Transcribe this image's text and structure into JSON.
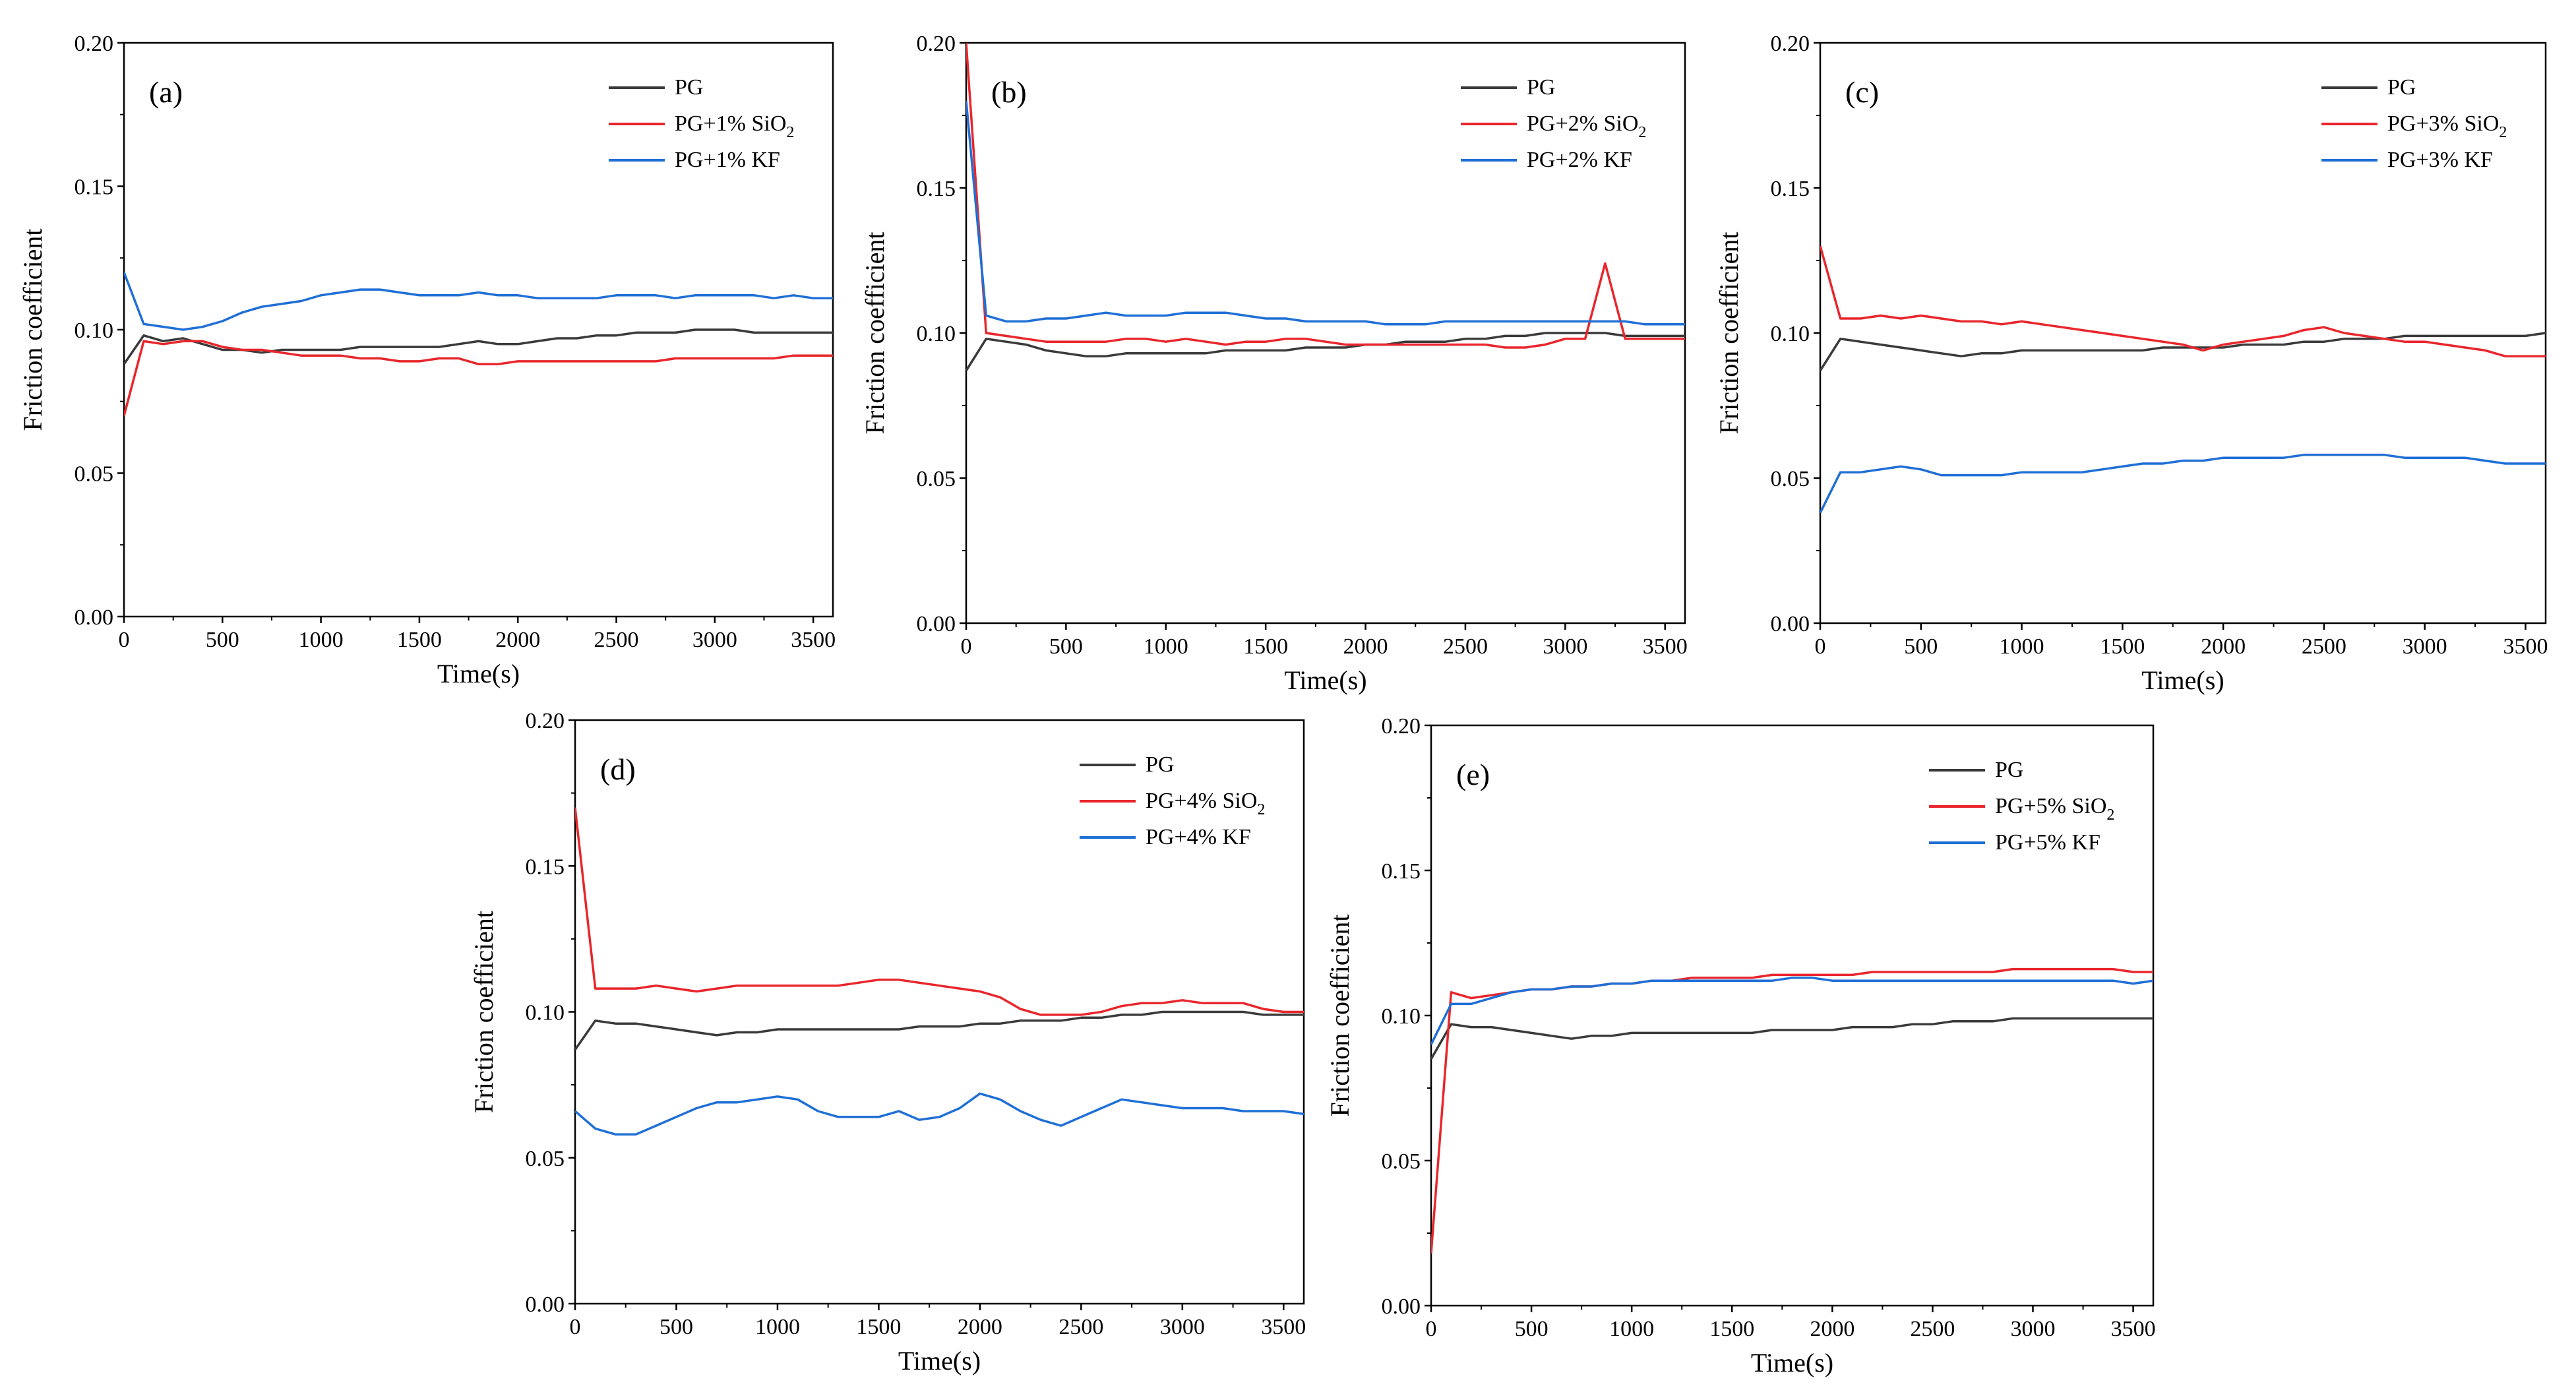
{
  "chart_data": [
    {
      "type": "line",
      "panel_label": "(a)",
      "xlabel": "Time(s)",
      "ylabel": "Friction coefficient",
      "xlim": [
        0,
        3600
      ],
      "ylim": [
        0,
        0.2
      ],
      "xticks": [
        "0",
        "500",
        "1000",
        "1500",
        "2000",
        "2500",
        "3000",
        "3500"
      ],
      "yticks": [
        "0.00",
        "0.05",
        "0.10",
        "0.15",
        "0.20"
      ],
      "legend_position": "top-right",
      "x": [
        0,
        100,
        200,
        300,
        400,
        500,
        600,
        700,
        800,
        900,
        1000,
        1100,
        1200,
        1300,
        1400,
        1500,
        1600,
        1700,
        1800,
        1900,
        2000,
        2100,
        2200,
        2300,
        2400,
        2500,
        2600,
        2700,
        2800,
        2900,
        3000,
        3100,
        3200,
        3300,
        3400,
        3500,
        3600
      ],
      "series": [
        {
          "name": "PG",
          "label_main": "PG",
          "label_sub": "",
          "color": "#3a3a3a",
          "values": [
            0.088,
            0.098,
            0.096,
            0.097,
            0.095,
            0.093,
            0.093,
            0.092,
            0.093,
            0.093,
            0.093,
            0.093,
            0.094,
            0.094,
            0.094,
            0.094,
            0.094,
            0.095,
            0.096,
            0.095,
            0.095,
            0.096,
            0.097,
            0.097,
            0.098,
            0.098,
            0.099,
            0.099,
            0.099,
            0.1,
            0.1,
            0.1,
            0.099,
            0.099,
            0.099,
            0.099,
            0.099
          ]
        },
        {
          "name": "PG+1% SiO2",
          "label_main": "PG+1% SiO",
          "label_sub": "2",
          "color": "#e8262c",
          "values": [
            0.07,
            0.096,
            0.095,
            0.096,
            0.096,
            0.094,
            0.093,
            0.093,
            0.092,
            0.091,
            0.091,
            0.091,
            0.09,
            0.09,
            0.089,
            0.089,
            0.09,
            0.09,
            0.088,
            0.088,
            0.089,
            0.089,
            0.089,
            0.089,
            0.089,
            0.089,
            0.089,
            0.089,
            0.09,
            0.09,
            0.09,
            0.09,
            0.09,
            0.09,
            0.091,
            0.091,
            0.091
          ]
        },
        {
          "name": "PG+1% KF",
          "label_main": "PG+1% KF",
          "label_sub": "",
          "color": "#1f6fd6",
          "values": [
            0.12,
            0.102,
            0.101,
            0.1,
            0.101,
            0.103,
            0.106,
            0.108,
            0.109,
            0.11,
            0.112,
            0.113,
            0.114,
            0.114,
            0.113,
            0.112,
            0.112,
            0.112,
            0.113,
            0.112,
            0.112,
            0.111,
            0.111,
            0.111,
            0.111,
            0.112,
            0.112,
            0.112,
            0.111,
            0.112,
            0.112,
            0.112,
            0.112,
            0.111,
            0.112,
            0.111,
            0.111
          ]
        }
      ]
    },
    {
      "type": "line",
      "panel_label": "(b)",
      "xlabel": "Time(s)",
      "ylabel": "Friction coefficient",
      "xlim": [
        0,
        3600
      ],
      "ylim": [
        0,
        0.2
      ],
      "xticks": [
        "0",
        "500",
        "1000",
        "1500",
        "2000",
        "2500",
        "3000",
        "3500"
      ],
      "yticks": [
        "0.00",
        "0.05",
        "0.10",
        "0.15",
        "0.20"
      ],
      "legend_position": "top-right",
      "x": [
        0,
        100,
        200,
        300,
        400,
        500,
        600,
        700,
        800,
        900,
        1000,
        1100,
        1200,
        1300,
        1400,
        1500,
        1600,
        1700,
        1800,
        1900,
        2000,
        2100,
        2200,
        2300,
        2400,
        2500,
        2600,
        2700,
        2800,
        2900,
        3000,
        3100,
        3200,
        3300,
        3400,
        3500,
        3600
      ],
      "series": [
        {
          "name": "PG",
          "label_main": "PG",
          "label_sub": "",
          "color": "#3a3a3a",
          "values": [
            0.087,
            0.098,
            0.097,
            0.096,
            0.094,
            0.093,
            0.092,
            0.092,
            0.093,
            0.093,
            0.093,
            0.093,
            0.093,
            0.094,
            0.094,
            0.094,
            0.094,
            0.095,
            0.095,
            0.095,
            0.096,
            0.096,
            0.097,
            0.097,
            0.097,
            0.098,
            0.098,
            0.099,
            0.099,
            0.1,
            0.1,
            0.1,
            0.1,
            0.099,
            0.099,
            0.099,
            0.099
          ]
        },
        {
          "name": "PG+2% SiO2",
          "label_main": "PG+2% SiO",
          "label_sub": "2",
          "color": "#e8262c",
          "values": [
            0.2,
            0.1,
            0.099,
            0.098,
            0.097,
            0.097,
            0.097,
            0.097,
            0.098,
            0.098,
            0.097,
            0.098,
            0.097,
            0.096,
            0.097,
            0.097,
            0.098,
            0.098,
            0.097,
            0.096,
            0.096,
            0.096,
            0.096,
            0.096,
            0.096,
            0.096,
            0.096,
            0.095,
            0.095,
            0.096,
            0.098,
            0.098,
            0.124,
            0.098,
            0.098,
            0.098,
            0.098
          ]
        },
        {
          "name": "PG+2% KF",
          "label_main": "PG+2% KF",
          "label_sub": "",
          "color": "#1f6fd6",
          "values": [
            0.18,
            0.106,
            0.104,
            0.104,
            0.105,
            0.105,
            0.106,
            0.107,
            0.106,
            0.106,
            0.106,
            0.107,
            0.107,
            0.107,
            0.106,
            0.105,
            0.105,
            0.104,
            0.104,
            0.104,
            0.104,
            0.103,
            0.103,
            0.103,
            0.104,
            0.104,
            0.104,
            0.104,
            0.104,
            0.104,
            0.104,
            0.104,
            0.104,
            0.104,
            0.103,
            0.103,
            0.103
          ]
        }
      ]
    },
    {
      "type": "line",
      "panel_label": "(c)",
      "xlabel": "Time(s)",
      "ylabel": "Friction coefficient",
      "xlim": [
        0,
        3600
      ],
      "ylim": [
        0,
        0.2
      ],
      "xticks": [
        "0",
        "500",
        "1000",
        "1500",
        "2000",
        "2500",
        "3000",
        "3500"
      ],
      "yticks": [
        "0.00",
        "0.05",
        "0.10",
        "0.15",
        "0.20"
      ],
      "legend_position": "top-right",
      "x": [
        0,
        100,
        200,
        300,
        400,
        500,
        600,
        700,
        800,
        900,
        1000,
        1100,
        1200,
        1300,
        1400,
        1500,
        1600,
        1700,
        1800,
        1900,
        2000,
        2100,
        2200,
        2300,
        2400,
        2500,
        2600,
        2700,
        2800,
        2900,
        3000,
        3100,
        3200,
        3300,
        3400,
        3500,
        3600
      ],
      "series": [
        {
          "name": "PG",
          "label_main": "PG",
          "label_sub": "",
          "color": "#3a3a3a",
          "values": [
            0.087,
            0.098,
            0.097,
            0.096,
            0.095,
            0.094,
            0.093,
            0.092,
            0.093,
            0.093,
            0.094,
            0.094,
            0.094,
            0.094,
            0.094,
            0.094,
            0.094,
            0.095,
            0.095,
            0.095,
            0.095,
            0.096,
            0.096,
            0.096,
            0.097,
            0.097,
            0.098,
            0.098,
            0.098,
            0.099,
            0.099,
            0.099,
            0.099,
            0.099,
            0.099,
            0.099,
            0.1
          ]
        },
        {
          "name": "PG+3% SiO2",
          "label_main": "PG+3% SiO",
          "label_sub": "2",
          "color": "#e8262c",
          "values": [
            0.13,
            0.105,
            0.105,
            0.106,
            0.105,
            0.106,
            0.105,
            0.104,
            0.104,
            0.103,
            0.104,
            0.103,
            0.102,
            0.101,
            0.1,
            0.099,
            0.098,
            0.097,
            0.096,
            0.094,
            0.096,
            0.097,
            0.098,
            0.099,
            0.101,
            0.102,
            0.1,
            0.099,
            0.098,
            0.097,
            0.097,
            0.096,
            0.095,
            0.094,
            0.092,
            0.092,
            0.092
          ]
        },
        {
          "name": "PG+3% KF",
          "label_main": "PG+3% KF",
          "label_sub": "",
          "color": "#1f6fd6",
          "values": [
            0.038,
            0.052,
            0.052,
            0.053,
            0.054,
            0.053,
            0.051,
            0.051,
            0.051,
            0.051,
            0.052,
            0.052,
            0.052,
            0.052,
            0.053,
            0.054,
            0.055,
            0.055,
            0.056,
            0.056,
            0.057,
            0.057,
            0.057,
            0.057,
            0.058,
            0.058,
            0.058,
            0.058,
            0.058,
            0.057,
            0.057,
            0.057,
            0.057,
            0.056,
            0.055,
            0.055,
            0.055
          ]
        }
      ]
    },
    {
      "type": "line",
      "panel_label": "(d)",
      "xlabel": "Time(s)",
      "ylabel": "Friction coefficient",
      "xlim": [
        0,
        3600
      ],
      "ylim": [
        0,
        0.2
      ],
      "xticks": [
        "0",
        "500",
        "1000",
        "1500",
        "2000",
        "2500",
        "3000",
        "3500"
      ],
      "yticks": [
        "0.00",
        "0.05",
        "0.10",
        "0.15",
        "0.20"
      ],
      "legend_position": "top-right",
      "x": [
        0,
        100,
        200,
        300,
        400,
        500,
        600,
        700,
        800,
        900,
        1000,
        1100,
        1200,
        1300,
        1400,
        1500,
        1600,
        1700,
        1800,
        1900,
        2000,
        2100,
        2200,
        2300,
        2400,
        2500,
        2600,
        2700,
        2800,
        2900,
        3000,
        3100,
        3200,
        3300,
        3400,
        3500,
        3600
      ],
      "series": [
        {
          "name": "PG",
          "label_main": "PG",
          "label_sub": "",
          "color": "#3a3a3a",
          "values": [
            0.087,
            0.097,
            0.096,
            0.096,
            0.095,
            0.094,
            0.093,
            0.092,
            0.093,
            0.093,
            0.094,
            0.094,
            0.094,
            0.094,
            0.094,
            0.094,
            0.094,
            0.095,
            0.095,
            0.095,
            0.096,
            0.096,
            0.097,
            0.097,
            0.097,
            0.098,
            0.098,
            0.099,
            0.099,
            0.1,
            0.1,
            0.1,
            0.1,
            0.1,
            0.099,
            0.099,
            0.099
          ]
        },
        {
          "name": "PG+4% SiO2",
          "label_main": "PG+4% SiO",
          "label_sub": "2",
          "color": "#e8262c",
          "values": [
            0.17,
            0.108,
            0.108,
            0.108,
            0.109,
            0.108,
            0.107,
            0.108,
            0.109,
            0.109,
            0.109,
            0.109,
            0.109,
            0.109,
            0.11,
            0.111,
            0.111,
            0.11,
            0.109,
            0.108,
            0.107,
            0.105,
            0.101,
            0.099,
            0.099,
            0.099,
            0.1,
            0.102,
            0.103,
            0.103,
            0.104,
            0.103,
            0.103,
            0.103,
            0.101,
            0.1,
            0.1
          ]
        },
        {
          "name": "PG+4% KF",
          "label_main": "PG+4% KF",
          "label_sub": "",
          "color": "#1f6fd6",
          "values": [
            0.066,
            0.06,
            0.058,
            0.058,
            0.061,
            0.064,
            0.067,
            0.069,
            0.069,
            0.07,
            0.071,
            0.07,
            0.066,
            0.064,
            0.064,
            0.064,
            0.066,
            0.063,
            0.064,
            0.067,
            0.072,
            0.07,
            0.066,
            0.063,
            0.061,
            0.064,
            0.067,
            0.07,
            0.069,
            0.068,
            0.067,
            0.067,
            0.067,
            0.066,
            0.066,
            0.066,
            0.065
          ]
        }
      ]
    },
    {
      "type": "line",
      "panel_label": "(e)",
      "xlabel": "Time(s)",
      "ylabel": "Friction coefficient",
      "xlim": [
        0,
        3600
      ],
      "ylim": [
        0,
        0.2
      ],
      "xticks": [
        "0",
        "500",
        "1000",
        "1500",
        "2000",
        "2500",
        "3000",
        "3500"
      ],
      "yticks": [
        "0.00",
        "0.05",
        "0.10",
        "0.15",
        "0.20"
      ],
      "legend_position": "top-right",
      "x": [
        0,
        100,
        200,
        300,
        400,
        500,
        600,
        700,
        800,
        900,
        1000,
        1100,
        1200,
        1300,
        1400,
        1500,
        1600,
        1700,
        1800,
        1900,
        2000,
        2100,
        2200,
        2300,
        2400,
        2500,
        2600,
        2700,
        2800,
        2900,
        3000,
        3100,
        3200,
        3300,
        3400,
        3500,
        3600
      ],
      "series": [
        {
          "name": "PG",
          "label_main": "PG",
          "label_sub": "",
          "color": "#3a3a3a",
          "values": [
            0.085,
            0.097,
            0.096,
            0.096,
            0.095,
            0.094,
            0.093,
            0.092,
            0.093,
            0.093,
            0.094,
            0.094,
            0.094,
            0.094,
            0.094,
            0.094,
            0.094,
            0.095,
            0.095,
            0.095,
            0.095,
            0.096,
            0.096,
            0.096,
            0.097,
            0.097,
            0.098,
            0.098,
            0.098,
            0.099,
            0.099,
            0.099,
            0.099,
            0.099,
            0.099,
            0.099,
            0.099
          ]
        },
        {
          "name": "PG+5% SiO2",
          "label_main": "PG+5% SiO",
          "label_sub": "2",
          "color": "#e8262c",
          "values": [
            0.018,
            0.108,
            0.106,
            0.107,
            0.108,
            0.109,
            0.109,
            0.11,
            0.11,
            0.111,
            0.111,
            0.112,
            0.112,
            0.113,
            0.113,
            0.113,
            0.113,
            0.114,
            0.114,
            0.114,
            0.114,
            0.114,
            0.115,
            0.115,
            0.115,
            0.115,
            0.115,
            0.115,
            0.115,
            0.116,
            0.116,
            0.116,
            0.116,
            0.116,
            0.116,
            0.115,
            0.115
          ]
        },
        {
          "name": "PG+5% KF",
          "label_main": "PG+5% KF",
          "label_sub": "",
          "color": "#1f6fd6",
          "values": [
            0.09,
            0.104,
            0.104,
            0.106,
            0.108,
            0.109,
            0.109,
            0.11,
            0.11,
            0.111,
            0.111,
            0.112,
            0.112,
            0.112,
            0.112,
            0.112,
            0.112,
            0.112,
            0.113,
            0.113,
            0.112,
            0.112,
            0.112,
            0.112,
            0.112,
            0.112,
            0.112,
            0.112,
            0.112,
            0.112,
            0.112,
            0.112,
            0.112,
            0.112,
            0.112,
            0.111,
            0.112
          ]
        }
      ]
    }
  ]
}
